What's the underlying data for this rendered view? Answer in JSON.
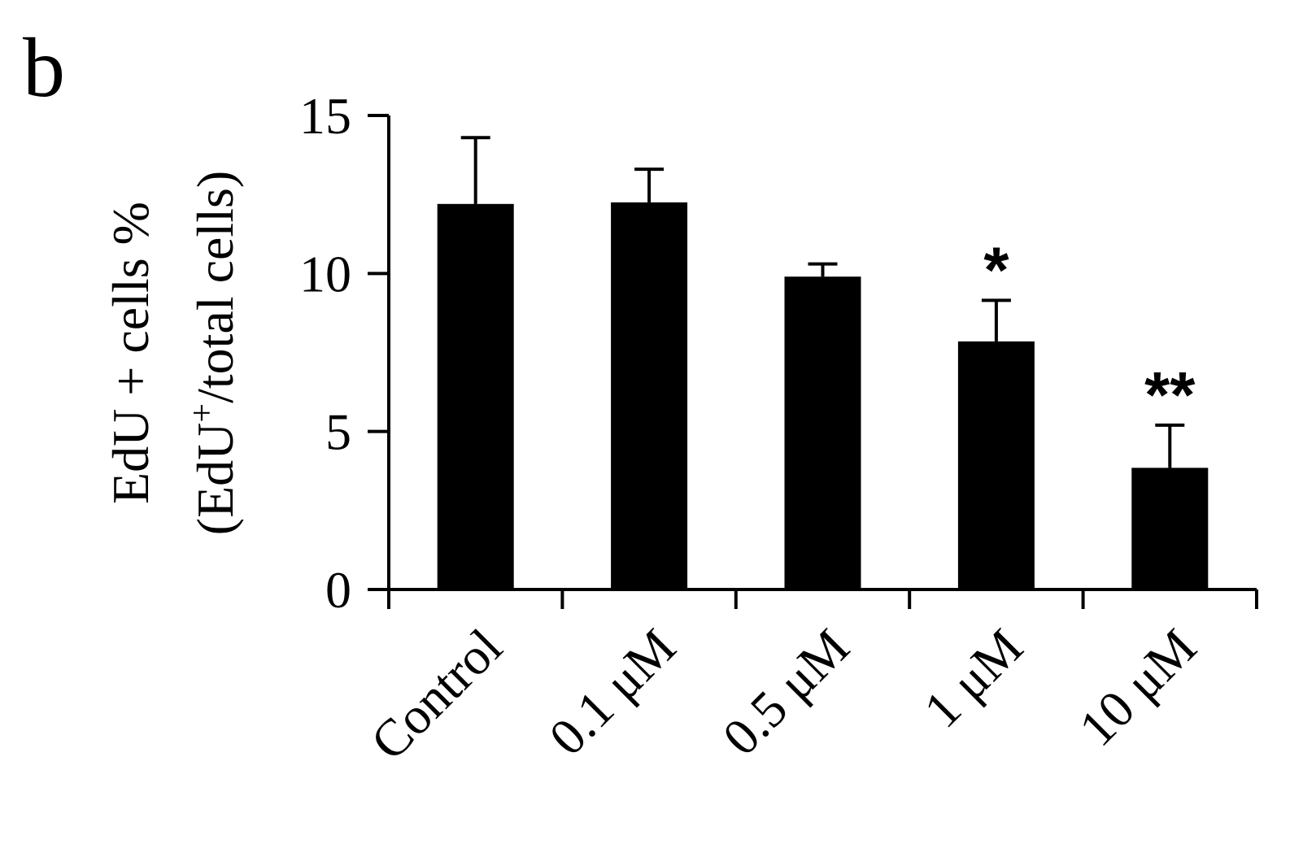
{
  "panel_label": "b",
  "chart_data": {
    "type": "bar",
    "categories": [
      "Control",
      "0.1 μM",
      "0.5 μM",
      "1 μM",
      "10 μM"
    ],
    "values": [
      12.2,
      12.25,
      9.9,
      7.85,
      3.85
    ],
    "errors": [
      2.1,
      1.05,
      0.4,
      1.3,
      1.35
    ],
    "significance": [
      "",
      "",
      "",
      "*",
      "**"
    ],
    "ylabel_line1": "EdU + cells %",
    "ylabel_line2_prefix": "(EdU",
    "ylabel_line2_sup": "+",
    "ylabel_line2_suffix": "/total cells)",
    "yticks": [
      "0",
      "5",
      "10",
      "15"
    ],
    "ylim": [
      0,
      15
    ],
    "grid": false,
    "legend": "none",
    "bar_color": "#000000"
  }
}
